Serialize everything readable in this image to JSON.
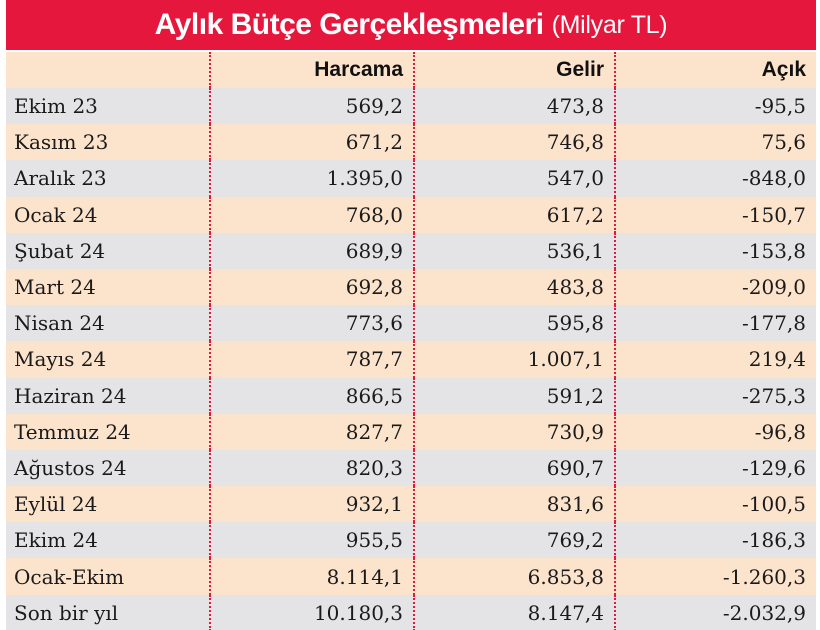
{
  "header": {
    "title": "Aylık Bütçe Gerçekleşmeleri",
    "unit": "(Milyar TL)"
  },
  "colors": {
    "accent": "#e5173c",
    "row_gray": "#e4e4e6",
    "row_peach": "#fce3cc"
  },
  "chart_data": {
    "type": "table",
    "title": "Aylık Bütçe Gerçekleşmeleri (Milyar TL)",
    "columns": [
      "",
      "Harcama",
      "Gelir",
      "Açık"
    ],
    "rows": [
      {
        "label": "Ekim 23",
        "harcama": "569,2",
        "gelir": "473,8",
        "acik": "-95,5"
      },
      {
        "label": "Kasım 23",
        "harcama": "671,2",
        "gelir": "746,8",
        "acik": "75,6"
      },
      {
        "label": "Aralık 23",
        "harcama": "1.395,0",
        "gelir": "547,0",
        "acik": "-848,0"
      },
      {
        "label": "Ocak 24",
        "harcama": "768,0",
        "gelir": "617,2",
        "acik": "-150,7"
      },
      {
        "label": "Şubat 24",
        "harcama": "689,9",
        "gelir": "536,1",
        "acik": "-153,8"
      },
      {
        "label": "Mart 24",
        "harcama": "692,8",
        "gelir": "483,8",
        "acik": "-209,0"
      },
      {
        "label": "Nisan 24",
        "harcama": "773,6",
        "gelir": "595,8",
        "acik": "-177,8"
      },
      {
        "label": "Mayıs 24",
        "harcama": "787,7",
        "gelir": "1.007,1",
        "acik": "219,4"
      },
      {
        "label": "Haziran 24",
        "harcama": "866,5",
        "gelir": "591,2",
        "acik": "-275,3"
      },
      {
        "label": "Temmuz 24",
        "harcama": "827,7",
        "gelir": "730,9",
        "acik": "-96,8"
      },
      {
        "label": "Ağustos 24",
        "harcama": "820,3",
        "gelir": "690,7",
        "acik": "-129,6"
      },
      {
        "label": "Eylül 24",
        "harcama": "932,1",
        "gelir": "831,6",
        "acik": "-100,5"
      },
      {
        "label": "Ekim 24",
        "harcama": "955,5",
        "gelir": "769,2",
        "acik": "-186,3"
      },
      {
        "label": "Ocak-Ekim",
        "harcama": "8.114,1",
        "gelir": "6.853,8",
        "acik": "-1.260,3"
      },
      {
        "label": "Son bir yıl",
        "harcama": "10.180,3",
        "gelir": "8.147,4",
        "acik": "-2.032,9"
      }
    ]
  }
}
